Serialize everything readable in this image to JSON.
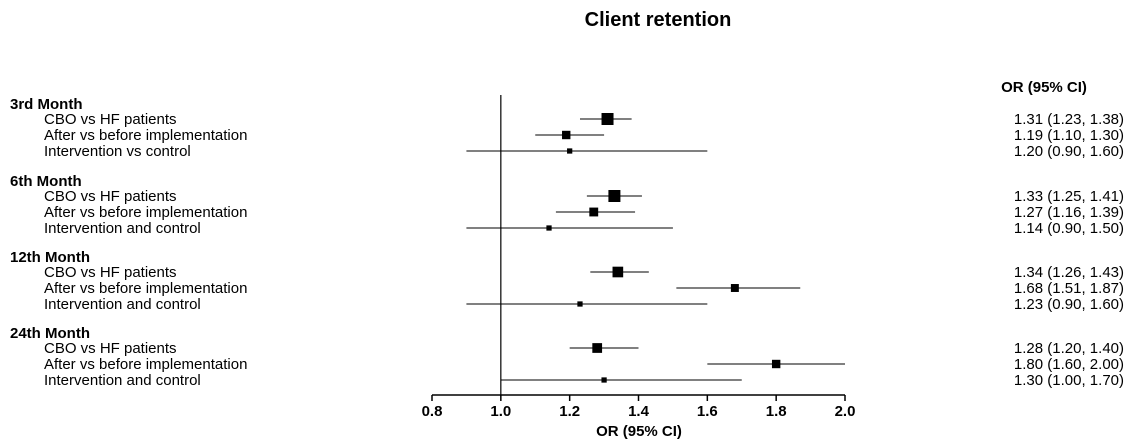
{
  "chart_data": {
    "type": "forest",
    "title": "Client retention",
    "xlabel": "OR (95% CI)",
    "column_header": "OR (95% CI)",
    "reference_line": 1.0,
    "xlim": [
      0.8,
      2.0
    ],
    "xticks": [
      "0.8",
      "1.0",
      "1.2",
      "1.4",
      "1.6",
      "1.8",
      "2.0"
    ],
    "groups": [
      {
        "label": "3rd Month",
        "rows": [
          {
            "label": "CBO vs HF patients",
            "or": 1.31,
            "lo": 1.23,
            "hi": 1.38,
            "ci_text": "1.31 (1.23, 1.38)",
            "weight": 1.0
          },
          {
            "label": "After vs before implementation",
            "or": 1.19,
            "lo": 1.1,
            "hi": 1.3,
            "ci_text": "1.19 (1.10, 1.30)",
            "weight": 0.6
          },
          {
            "label": "Intervention vs control",
            "or": 1.2,
            "lo": 0.9,
            "hi": 1.6,
            "ci_text": "1.20 (0.90, 1.60)",
            "weight": 0.25
          }
        ]
      },
      {
        "label": "6th Month",
        "rows": [
          {
            "label": "CBO vs HF patients",
            "or": 1.33,
            "lo": 1.25,
            "hi": 1.41,
            "ci_text": "1.33 (1.25, 1.41)",
            "weight": 1.0
          },
          {
            "label": "After vs before implementation",
            "or": 1.27,
            "lo": 1.16,
            "hi": 1.39,
            "ci_text": "1.27 (1.16, 1.39)",
            "weight": 0.65
          },
          {
            "label": "Intervention and control",
            "or": 1.14,
            "lo": 0.9,
            "hi": 1.5,
            "ci_text": "1.14 (0.90, 1.50)",
            "weight": 0.25
          }
        ]
      },
      {
        "label": "12th Month",
        "rows": [
          {
            "label": "CBO vs HF patients",
            "or": 1.34,
            "lo": 1.26,
            "hi": 1.43,
            "ci_text": "1.34 (1.26, 1.43)",
            "weight": 0.85
          },
          {
            "label": "After vs before implementation",
            "or": 1.68,
            "lo": 1.51,
            "hi": 1.87,
            "ci_text": "1.68 (1.51, 1.87)",
            "weight": 0.55
          },
          {
            "label": "Intervention and control",
            "or": 1.23,
            "lo": 0.9,
            "hi": 1.6,
            "ci_text": "1.23 (0.90, 1.60)",
            "weight": 0.25
          }
        ]
      },
      {
        "label": "24th Month",
        "rows": [
          {
            "label": "CBO vs HF patients",
            "or": 1.28,
            "lo": 1.2,
            "hi": 1.4,
            "ci_text": "1.28 (1.20, 1.40)",
            "weight": 0.75
          },
          {
            "label": "After vs before implementation",
            "or": 1.8,
            "lo": 1.6,
            "hi": 2.0,
            "ci_text": "1.80 (1.60, 2.00)",
            "weight": 0.6
          },
          {
            "label": "Intervention and control",
            "or": 1.3,
            "lo": 1.0,
            "hi": 1.7,
            "ci_text": "1.30 (1.00, 1.70)",
            "weight": 0.25
          }
        ]
      }
    ]
  }
}
